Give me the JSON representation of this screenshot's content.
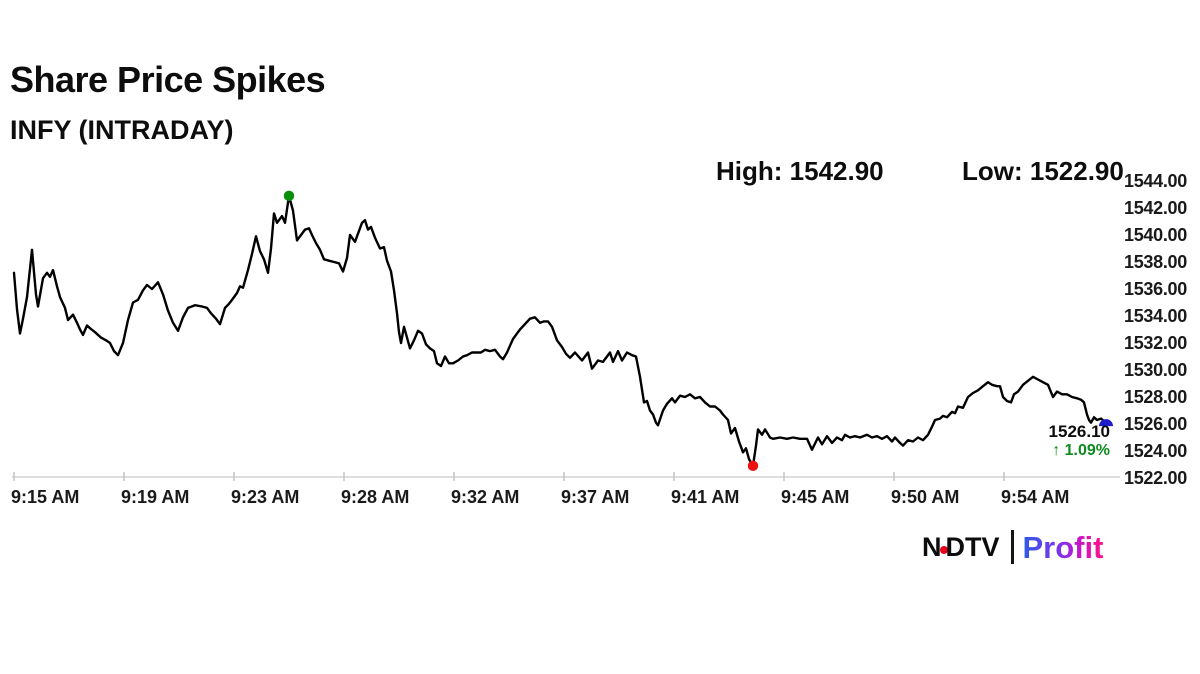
{
  "header": {
    "title": "Share Price Spikes",
    "subtitle": "INFY (INTRADAY)"
  },
  "stats": {
    "high_text": "High: 1542.90",
    "low_text": "Low: 1522.90"
  },
  "last": {
    "value": "1526.10",
    "change": "↑ 1.09%",
    "change_color": "#0e8a1e"
  },
  "logo": {
    "n": "N",
    "dtv": "DTV",
    "profit": "Profit",
    "dot_color": "#e8001c"
  },
  "chart_data": {
    "type": "line",
    "title": "INFY intraday share price",
    "xlabel": "",
    "ylabel": "",
    "ylim": [
      1522,
      1544
    ],
    "grid": false,
    "legend": false,
    "line_color": "#000000",
    "axis_color": "#c9c9c9",
    "tick_color": "#bdbdbd",
    "label_color": "#1a1a1a",
    "high": 1542.9,
    "low": 1522.9,
    "last": 1526.1,
    "change_pct": 1.09,
    "x_tick_labels": [
      "9:15 AM",
      "9:19 AM",
      "9:23 AM",
      "9:28 AM",
      "9:32 AM",
      "9:37 AM",
      "9:41 AM",
      "9:45 AM",
      "9:50 AM",
      "9:54 AM"
    ],
    "y_ticks": [
      1544,
      1542,
      1540,
      1538,
      1536,
      1534,
      1532,
      1530,
      1528,
      1526,
      1524,
      1522
    ],
    "markers": {
      "high": {
        "x": 289,
        "price": 1542.9,
        "color": "#0a8f0a"
      },
      "low": {
        "x": 753,
        "price": 1522.9,
        "color": "#ee1111"
      },
      "last": {
        "x": 1106,
        "price": 1526.1,
        "color": "#1c1ccd"
      }
    },
    "points": [
      [
        14,
        1537.2
      ],
      [
        17,
        1534.5
      ],
      [
        20,
        1532.7
      ],
      [
        23,
        1533.8
      ],
      [
        27,
        1535.4
      ],
      [
        32,
        1538.9
      ],
      [
        36,
        1535.6
      ],
      [
        38,
        1534.7
      ],
      [
        43,
        1536.8
      ],
      [
        47,
        1537.2
      ],
      [
        50,
        1536.9
      ],
      [
        53,
        1537.4
      ],
      [
        57,
        1536.2
      ],
      [
        60,
        1535.4
      ],
      [
        65,
        1534.6
      ],
      [
        68,
        1533.7
      ],
      [
        73,
        1534.1
      ],
      [
        77,
        1533.5
      ],
      [
        80,
        1533.0
      ],
      [
        83,
        1532.6
      ],
      [
        87,
        1533.3
      ],
      [
        90,
        1533.1
      ],
      [
        95,
        1532.8
      ],
      [
        101,
        1532.4
      ],
      [
        106,
        1532.2
      ],
      [
        110,
        1532.0
      ],
      [
        114,
        1531.4
      ],
      [
        118,
        1531.1
      ],
      [
        123,
        1532.0
      ],
      [
        128,
        1533.7
      ],
      [
        133,
        1535.0
      ],
      [
        138,
        1535.2
      ],
      [
        143,
        1535.9
      ],
      [
        147,
        1536.3
      ],
      [
        152,
        1536.0
      ],
      [
        158,
        1536.5
      ],
      [
        163,
        1535.6
      ],
      [
        168,
        1534.4
      ],
      [
        173,
        1533.5
      ],
      [
        178,
        1532.9
      ],
      [
        183,
        1533.9
      ],
      [
        188,
        1534.6
      ],
      [
        195,
        1534.8
      ],
      [
        202,
        1534.7
      ],
      [
        207,
        1534.6
      ],
      [
        211,
        1534.2
      ],
      [
        216,
        1533.8
      ],
      [
        220,
        1533.4
      ],
      [
        225,
        1534.6
      ],
      [
        229,
        1534.9
      ],
      [
        233,
        1535.3
      ],
      [
        237,
        1535.7
      ],
      [
        240,
        1536.2
      ],
      [
        243,
        1536.1
      ],
      [
        248,
        1537.4
      ],
      [
        252,
        1538.6
      ],
      [
        256,
        1539.9
      ],
      [
        260,
        1538.8
      ],
      [
        264,
        1538.2
      ],
      [
        268,
        1537.2
      ],
      [
        271,
        1539.0
      ],
      [
        274,
        1541.6
      ],
      [
        277,
        1540.9
      ],
      [
        282,
        1541.4
      ],
      [
        285,
        1540.9
      ],
      [
        289,
        1542.9
      ],
      [
        293,
        1541.8
      ],
      [
        297,
        1539.6
      ],
      [
        301,
        1540.0
      ],
      [
        305,
        1540.4
      ],
      [
        309,
        1540.5
      ],
      [
        312,
        1540.0
      ],
      [
        316,
        1539.4
      ],
      [
        320,
        1538.9
      ],
      [
        324,
        1538.2
      ],
      [
        329,
        1538.1
      ],
      [
        334,
        1538.0
      ],
      [
        339,
        1537.9
      ],
      [
        343,
        1537.3
      ],
      [
        347,
        1538.3
      ],
      [
        350,
        1540.0
      ],
      [
        355,
        1539.5
      ],
      [
        362,
        1540.9
      ],
      [
        365,
        1541.1
      ],
      [
        368,
        1540.4
      ],
      [
        371,
        1540.6
      ],
      [
        375,
        1539.8
      ],
      [
        380,
        1539.0
      ],
      [
        384,
        1539.1
      ],
      [
        387,
        1538.1
      ],
      [
        391,
        1537.3
      ],
      [
        394,
        1535.9
      ],
      [
        397,
        1534.2
      ],
      [
        399,
        1532.8
      ],
      [
        401,
        1532.0
      ],
      [
        404,
        1533.2
      ],
      [
        407,
        1532.4
      ],
      [
        410,
        1531.6
      ],
      [
        414,
        1532.2
      ],
      [
        418,
        1532.9
      ],
      [
        422,
        1532.7
      ],
      [
        426,
        1531.9
      ],
      [
        430,
        1531.6
      ],
      [
        434,
        1531.4
      ],
      [
        437,
        1530.5
      ],
      [
        441,
        1530.3
      ],
      [
        445,
        1531.0
      ],
      [
        449,
        1530.5
      ],
      [
        453,
        1530.5
      ],
      [
        458,
        1530.7
      ],
      [
        463,
        1531.0
      ],
      [
        467,
        1531.1
      ],
      [
        472,
        1531.3
      ],
      [
        477,
        1531.3
      ],
      [
        481,
        1531.3
      ],
      [
        485,
        1531.5
      ],
      [
        490,
        1531.4
      ],
      [
        495,
        1531.5
      ],
      [
        500,
        1531.0
      ],
      [
        503,
        1530.8
      ],
      [
        507,
        1531.3
      ],
      [
        510,
        1531.8
      ],
      [
        513,
        1532.3
      ],
      [
        517,
        1532.7
      ],
      [
        520,
        1533.0
      ],
      [
        525,
        1533.4
      ],
      [
        530,
        1533.8
      ],
      [
        535,
        1533.9
      ],
      [
        540,
        1533.5
      ],
      [
        544,
        1533.6
      ],
      [
        548,
        1533.6
      ],
      [
        552,
        1533.2
      ],
      [
        557,
        1532.2
      ],
      [
        562,
        1531.7
      ],
      [
        566,
        1531.2
      ],
      [
        570,
        1530.9
      ],
      [
        575,
        1531.3
      ],
      [
        582,
        1530.7
      ],
      [
        588,
        1531.3
      ],
      [
        592,
        1530.1
      ],
      [
        598,
        1530.7
      ],
      [
        603,
        1530.6
      ],
      [
        610,
        1531.3
      ],
      [
        613,
        1530.6
      ],
      [
        618,
        1531.4
      ],
      [
        622,
        1530.7
      ],
      [
        627,
        1531.3
      ],
      [
        632,
        1531.1
      ],
      [
        636,
        1531.0
      ],
      [
        640,
        1529.5
      ],
      [
        644,
        1527.6
      ],
      [
        647,
        1527.7
      ],
      [
        650,
        1527.0
      ],
      [
        653,
        1526.7
      ],
      [
        656,
        1526.1
      ],
      [
        658,
        1525.9
      ],
      [
        663,
        1527.0
      ],
      [
        667,
        1527.5
      ],
      [
        672,
        1527.9
      ],
      [
        675,
        1527.6
      ],
      [
        680,
        1528.1
      ],
      [
        685,
        1528.0
      ],
      [
        690,
        1528.2
      ],
      [
        695,
        1527.9
      ],
      [
        700,
        1528.0
      ],
      [
        705,
        1527.6
      ],
      [
        710,
        1527.3
      ],
      [
        715,
        1527.3
      ],
      [
        720,
        1527.0
      ],
      [
        723,
        1526.7
      ],
      [
        728,
        1526.3
      ],
      [
        731,
        1525.3
      ],
      [
        735,
        1525.7
      ],
      [
        739,
        1524.7
      ],
      [
        743,
        1523.9
      ],
      [
        746,
        1524.2
      ],
      [
        749,
        1523.4
      ],
      [
        753,
        1522.9
      ],
      [
        756,
        1524.4
      ],
      [
        758,
        1525.6
      ],
      [
        762,
        1525.2
      ],
      [
        765,
        1525.6
      ],
      [
        770,
        1525.0
      ],
      [
        773,
        1524.9
      ],
      [
        780,
        1525.0
      ],
      [
        787,
        1524.9
      ],
      [
        793,
        1525.0
      ],
      [
        800,
        1524.9
      ],
      [
        807,
        1524.9
      ],
      [
        812,
        1524.1
      ],
      [
        818,
        1525.0
      ],
      [
        822,
        1524.5
      ],
      [
        827,
        1525.1
      ],
      [
        832,
        1524.6
      ],
      [
        837,
        1525.0
      ],
      [
        842,
        1524.8
      ],
      [
        845,
        1525.2
      ],
      [
        850,
        1525.0
      ],
      [
        855,
        1525.1
      ],
      [
        860,
        1525.0
      ],
      [
        867,
        1525.2
      ],
      [
        872,
        1525.0
      ],
      [
        877,
        1525.1
      ],
      [
        882,
        1524.9
      ],
      [
        887,
        1525.1
      ],
      [
        892,
        1524.7
      ],
      [
        895,
        1525.0
      ],
      [
        900,
        1524.6
      ],
      [
        903,
        1524.4
      ],
      [
        908,
        1524.8
      ],
      [
        913,
        1524.7
      ],
      [
        918,
        1525.0
      ],
      [
        923,
        1524.8
      ],
      [
        928,
        1525.2
      ],
      [
        932,
        1525.8
      ],
      [
        935,
        1526.3
      ],
      [
        940,
        1526.4
      ],
      [
        943,
        1526.6
      ],
      [
        947,
        1526.5
      ],
      [
        952,
        1526.9
      ],
      [
        955,
        1526.8
      ],
      [
        958,
        1527.3
      ],
      [
        963,
        1527.2
      ],
      [
        968,
        1528.0
      ],
      [
        973,
        1528.3
      ],
      [
        978,
        1528.5
      ],
      [
        983,
        1528.8
      ],
      [
        988,
        1529.1
      ],
      [
        992,
        1528.9
      ],
      [
        997,
        1528.8
      ],
      [
        1000,
        1528.8
      ],
      [
        1003,
        1528.0
      ],
      [
        1007,
        1527.7
      ],
      [
        1011,
        1527.6
      ],
      [
        1014,
        1528.2
      ],
      [
        1018,
        1528.4
      ],
      [
        1023,
        1528.9
      ],
      [
        1028,
        1529.2
      ],
      [
        1033,
        1529.5
      ],
      [
        1038,
        1529.3
      ],
      [
        1043,
        1529.1
      ],
      [
        1048,
        1528.9
      ],
      [
        1053,
        1528.0
      ],
      [
        1057,
        1528.4
      ],
      [
        1062,
        1528.2
      ],
      [
        1067,
        1528.2
      ],
      [
        1072,
        1528.0
      ],
      [
        1077,
        1527.9
      ],
      [
        1081,
        1527.8
      ],
      [
        1084,
        1527.6
      ],
      [
        1087,
        1526.7
      ],
      [
        1089,
        1526.3
      ],
      [
        1091,
        1526.1
      ],
      [
        1094,
        1526.5
      ],
      [
        1097,
        1526.3
      ],
      [
        1101,
        1526.4
      ],
      [
        1106,
        1526.1
      ]
    ]
  }
}
